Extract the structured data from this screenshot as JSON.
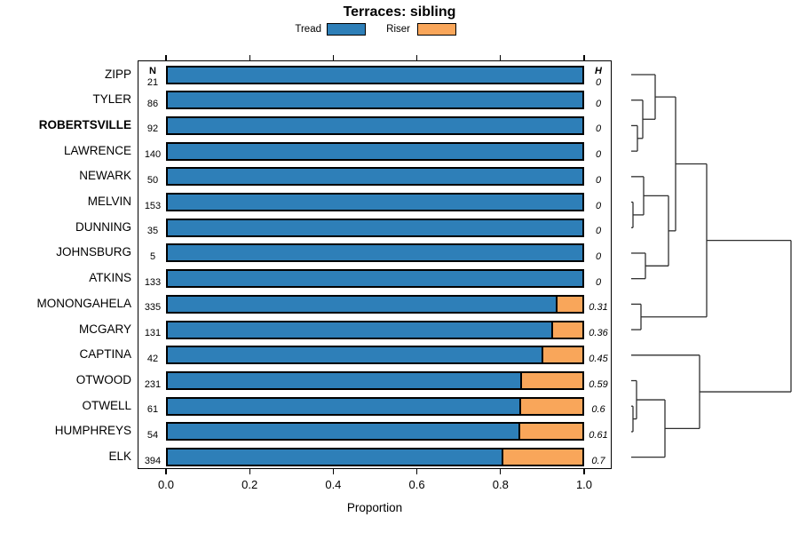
{
  "chart_data": {
    "type": "bar",
    "orientation": "horizontal",
    "stacked": true,
    "title": "Terraces: sibling",
    "xlabel": "Proportion",
    "xlim": [
      0,
      1
    ],
    "xticks": [
      0,
      0.2,
      0.4,
      0.6,
      0.8,
      1.0
    ],
    "xtick_labels": [
      "0.0",
      "0.2",
      "0.4",
      "0.6",
      "0.8",
      "1.0"
    ],
    "grid": false,
    "legend_position": "top",
    "categories": [
      "ZIPP",
      "TYLER",
      "ROBERTSVILLE",
      "LAWRENCE",
      "NEWARK",
      "MELVIN",
      "DUNNING",
      "JOHNSBURG",
      "ATKINS",
      "MONONGAHELA",
      "MCGARY",
      "CAPTINA",
      "OTWOOD",
      "OTWELL",
      "HUMPHREYS",
      "ELK"
    ],
    "bold_category": "ROBERTSVILLE",
    "series": [
      {
        "name": "Tread",
        "color": "#2E7FB8",
        "values": [
          1,
          1,
          1,
          1,
          1,
          1,
          1,
          1,
          1,
          0.94,
          0.93,
          0.905,
          0.855,
          0.852,
          0.85,
          0.81
        ]
      },
      {
        "name": "Riser",
        "color": "#F9A65A",
        "values": [
          0,
          0,
          0,
          0,
          0,
          0,
          0,
          0,
          0,
          0.06,
          0.07,
          0.095,
          0.145,
          0.148,
          0.15,
          0.19
        ]
      }
    ],
    "n_column": {
      "header": "N",
      "values": [
        "21",
        "86",
        "92",
        "140",
        "50",
        "153",
        "35",
        "5",
        "133",
        "335",
        "131",
        "42",
        "231",
        "61",
        "54",
        "394"
      ]
    },
    "h_column": {
      "header": "H",
      "values": [
        "0",
        "0",
        "0",
        "0",
        "0",
        "0",
        "0",
        "0",
        "0",
        "0.31",
        "0.36",
        "0.45",
        "0.59",
        "0.6",
        "0.61",
        "0.7"
      ]
    },
    "dendrogram": {
      "leaves": [
        "ZIPP",
        "TYLER",
        "ROBERTSVILLE",
        "LAWRENCE",
        "NEWARK",
        "MELVIN",
        "DUNNING",
        "JOHNSBURG",
        "ATKINS",
        "MONONGAHELA",
        "MCGARY",
        "CAPTINA",
        "OTWOOD",
        "OTWELL",
        "HUMPHREYS",
        "ELK"
      ],
      "merges": [
        {
          "id": "M1",
          "children": [
            "ROBERTSVILLE",
            "LAWRENCE"
          ],
          "x": 718
        },
        {
          "id": "M2",
          "children": [
            "TYLER",
            "M1"
          ],
          "x": 724
        },
        {
          "id": "M3",
          "children": [
            "ZIPP",
            "M2"
          ],
          "x": 738
        },
        {
          "id": "M4",
          "children": [
            "MELVIN",
            "DUNNING"
          ],
          "x": 713
        },
        {
          "id": "M5",
          "children": [
            "NEWARK",
            "M4"
          ],
          "x": 725
        },
        {
          "id": "M6",
          "children": [
            "JOHNSBURG",
            "ATKINS"
          ],
          "x": 727
        },
        {
          "id": "M7",
          "children": [
            "M5",
            "M6"
          ],
          "x": 753
        },
        {
          "id": "M8",
          "children": [
            "M3",
            "M7"
          ],
          "x": 761
        },
        {
          "id": "M9",
          "children": [
            "MONONGAHELA",
            "MCGARY"
          ],
          "x": 722
        },
        {
          "id": "M10",
          "children": [
            "M8",
            "M9"
          ],
          "x": 796
        },
        {
          "id": "M11",
          "children": [
            "OTWELL",
            "HUMPHREYS"
          ],
          "x": 713
        },
        {
          "id": "M12",
          "children": [
            "OTWOOD",
            "M11"
          ],
          "x": 717
        },
        {
          "id": "M13",
          "children": [
            "M12",
            "ELK"
          ],
          "x": 749
        },
        {
          "id": "M14",
          "children": [
            "CAPTINA",
            "M13"
          ],
          "x": 788
        },
        {
          "id": "M15",
          "children": [
            "M10",
            "M14"
          ],
          "x": 891
        }
      ]
    }
  }
}
